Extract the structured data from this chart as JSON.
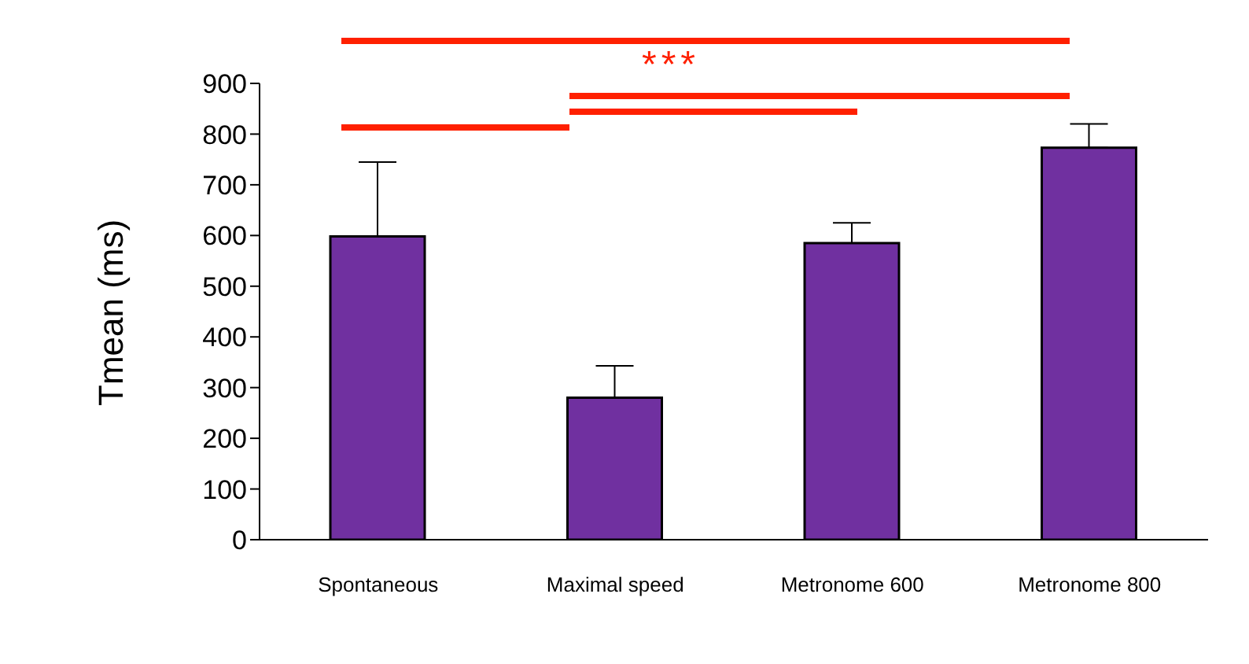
{
  "chart_data": {
    "type": "bar",
    "ylabel": "Tmean (ms)",
    "categories": [
      "Spontaneous",
      "Maximal  speed",
      "Metronome  600",
      "Metronome  800"
    ],
    "values": [
      598,
      280,
      585,
      773
    ],
    "color": "#7030a0",
    "errors": [
      [
        598,
        745
      ],
      [
        280,
        343
      ],
      [
        585,
        625
      ],
      [
        773,
        820
      ]
    ],
    "ylim": [
      0,
      900
    ],
    "yticks": [
      0,
      100,
      200,
      300,
      400,
      500,
      600,
      700,
      800,
      900
    ],
    "grid": false,
    "legend": false,
    "annotations": [
      "***"
    ]
  }
}
